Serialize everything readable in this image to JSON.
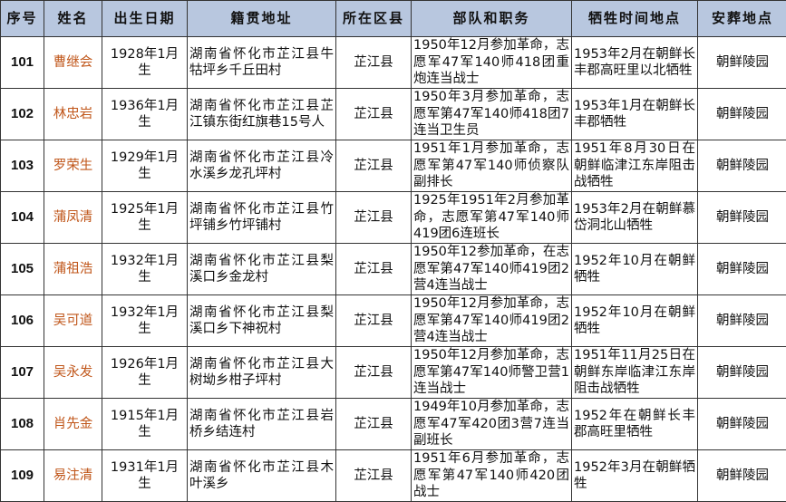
{
  "headers": [
    "序号",
    "姓名",
    "出生日期",
    "籍贯地址",
    "所在区县",
    "部队和职务",
    "牺牲时间地点",
    "安葬地点"
  ],
  "rows": [
    {
      "no": "101",
      "name": "曹继会",
      "birth": "1928年1月生",
      "address": "湖南省怀化市芷江县牛牯坪乡千丘田村",
      "county": "芷江县",
      "unit": "1950年12月参加革命，志愿军47军140师418团重炮连当战士",
      "death": "1953年2月在朝鲜长丰郡高旺里以北牺牲",
      "burial": "朝鲜陵园"
    },
    {
      "no": "102",
      "name": "林忠岩",
      "birth": "1936年1月生",
      "address": "湖南省怀化市芷江县芷江镇东街红旗巷15号人",
      "county": "芷江县",
      "unit": "1950年3月参加革命，志愿军第47军140师418团7连当卫生员",
      "death": "1953年1月在朝鲜长丰郡牺牲",
      "burial": "朝鲜陵园"
    },
    {
      "no": "103",
      "name": "罗荣生",
      "birth": "1929年1月生",
      "address": "湖南省怀化市芷江县冷水溪乡龙孔坪村",
      "county": "芷江县",
      "unit": "1951年1月参加革命，志愿军第47军140师侦察队副排长",
      "death": "1951年8月30日在朝鲜临津江东岸阻击战牺牲",
      "burial": "朝鲜陵园"
    },
    {
      "no": "104",
      "name": "蒲凤清",
      "birth": "1925年1月生",
      "address": "湖南省怀化市芷江县竹坪铺乡竹坪铺村",
      "county": "芷江县",
      "unit": "1925年1951年2月参加革命，志愿军第47军140师419团6连班长",
      "death": "1953年2月在朝鲜慕岱洞北山牺牲",
      "burial": "朝鲜陵园"
    },
    {
      "no": "105",
      "name": "蒲祖浩",
      "birth": "1932年1月生",
      "address": "湖南省怀化市芷江县梨溪口乡金龙村",
      "county": "芷江县",
      "unit": "1950年12参加革命，在志愿军第47军140师419团2营4连当战士",
      "death": "1952年10月在朝鲜牺牲",
      "burial": "朝鲜陵园"
    },
    {
      "no": "106",
      "name": "吴可道",
      "birth": "1932年1月生",
      "address": "湖南省怀化市芷江县梨溪口乡下神祝村",
      "county": "芷江县",
      "unit": "1950年12月参加革命，志愿军第47军140师419团2营4连当战士",
      "death": "1952年10月在朝鲜牺牲",
      "burial": "朝鲜陵园"
    },
    {
      "no": "107",
      "name": "吴永发",
      "birth": "1926年1月生",
      "address": "湖南省怀化市芷江县大树坳乡柑子坪村",
      "county": "芷江县",
      "unit": "1950年12月参加革命，志愿军第47军140师警卫营1连当战士",
      "death": "1951年11月25日在朝鲜东岸临津江东岸阻击战牺牲",
      "burial": "朝鲜陵园"
    },
    {
      "no": "108",
      "name": "肖先金",
      "birth": "1915年1月生",
      "address": "湖南省怀化市芷江县岩桥乡结连村",
      "county": "芷江县",
      "unit": "1949年10月参加革命，志愿军47军420团3营7连当副班长",
      "death": "1952年在朝鲜长丰郡高旺里牺牲",
      "burial": "朝鲜陵园"
    },
    {
      "no": "109",
      "name": "易注清",
      "birth": "1931年1月生",
      "address": "湖南省怀化市芷江县木叶溪乡",
      "county": "芷江县",
      "unit": "1951年6月参加革命，志愿军第47军140师420团战士",
      "death": "1952年3月在朝鲜牺牲",
      "burial": "朝鲜陵园"
    }
  ]
}
